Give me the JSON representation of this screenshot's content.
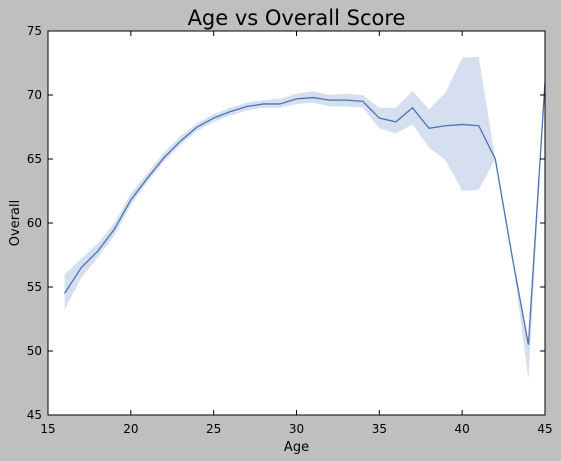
{
  "chart_data": {
    "type": "line",
    "title": "Age vs Overall Score",
    "xlabel": "Age",
    "ylabel": "Overall",
    "xlim": [
      15,
      45
    ],
    "ylim": [
      45,
      75
    ],
    "xticks": [
      "15",
      "20",
      "25",
      "30",
      "35",
      "40",
      "45"
    ],
    "yticks": [
      "45",
      "50",
      "55",
      "60",
      "65",
      "70",
      "75"
    ],
    "grid": false,
    "legend": "none",
    "colors": {
      "line": "#4c72b0",
      "band": "#c5d1ea",
      "figure_background": "#bfbfbf",
      "plot_background": "#ffffff"
    },
    "series": [
      {
        "x": [
          16,
          17,
          18,
          19,
          20,
          21,
          22,
          23,
          24,
          25,
          26,
          27,
          28,
          29,
          30,
          31,
          32,
          33,
          34,
          35,
          36,
          37,
          38,
          39,
          40,
          41,
          42,
          43,
          44,
          45
        ],
        "y": [
          54.5,
          56.5,
          57.8,
          59.5,
          61.8,
          63.5,
          65.1,
          66.4,
          67.5,
          68.2,
          68.7,
          69.1,
          69.3,
          69.3,
          69.7,
          69.8,
          69.6,
          69.6,
          69.5,
          68.2,
          67.9,
          69.0,
          67.4,
          67.6,
          67.7,
          67.6,
          65.0,
          57.5,
          50.5,
          71.0
        ],
        "ci_low": [
          53.2,
          55.7,
          57.3,
          59.0,
          61.4,
          63.2,
          64.8,
          66.1,
          67.2,
          67.9,
          68.4,
          68.8,
          69.0,
          69.0,
          69.3,
          69.4,
          69.1,
          69.1,
          69.0,
          67.4,
          67.0,
          67.7,
          65.9,
          64.9,
          62.5,
          62.6,
          65.0,
          57.5,
          47.8,
          71.0
        ],
        "ci_high": [
          56.0,
          57.2,
          58.4,
          60.0,
          62.3,
          63.9,
          65.5,
          66.8,
          67.8,
          68.5,
          69.0,
          69.4,
          69.6,
          69.7,
          70.1,
          70.3,
          70.0,
          70.1,
          70.0,
          69.0,
          69.0,
          70.3,
          68.9,
          70.2,
          72.9,
          73.0,
          65.0,
          57.5,
          50.6,
          71.0
        ]
      }
    ]
  }
}
